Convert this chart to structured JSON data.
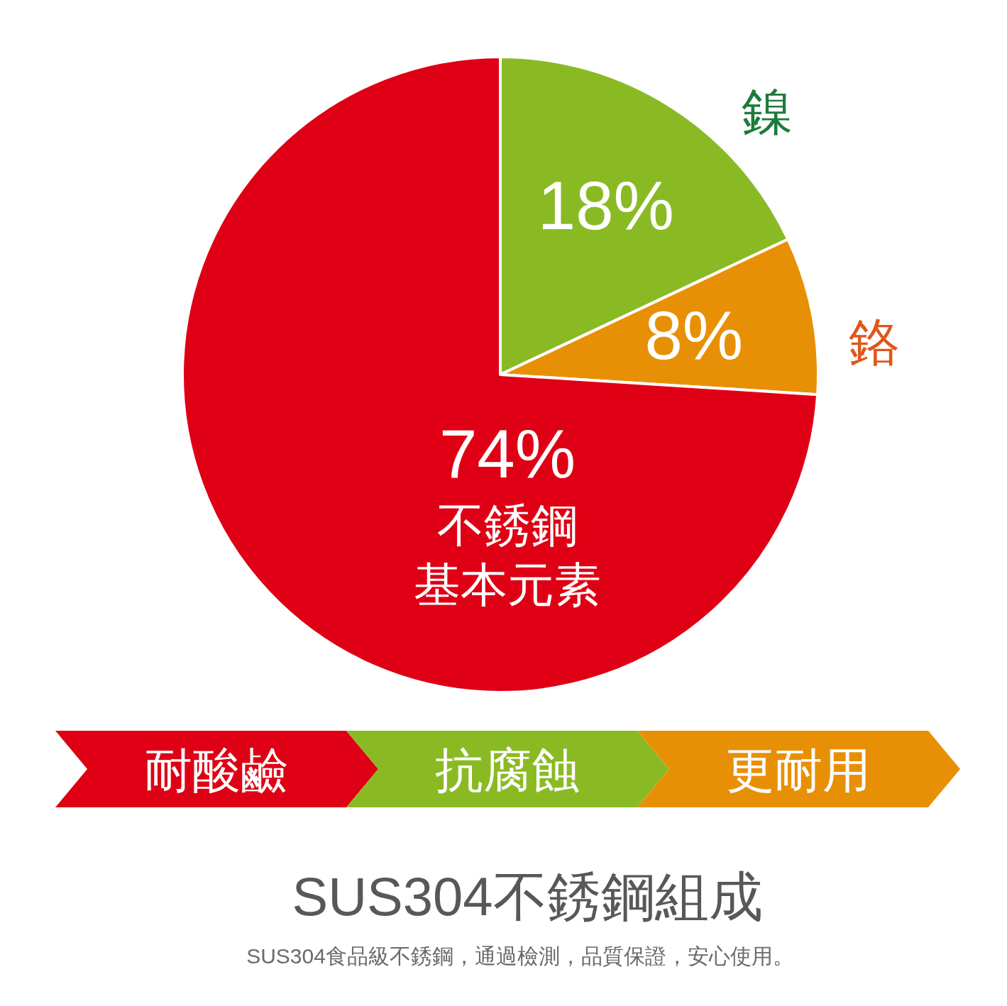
{
  "chart_data": {
    "type": "pie",
    "title": "SUS304不銹鋼組成",
    "subtitle": "SUS304食品級不銹鋼，通過檢測，品質保證，安心使用。",
    "categories": [
      "鎳",
      "鉻",
      "不銹鋼基本元素"
    ],
    "values": [
      18,
      8,
      74
    ],
    "colors": [
      "#8aba23",
      "#e89005",
      "#df0015"
    ],
    "value_labels": [
      "18%",
      "8%",
      "74%"
    ],
    "annotations": [
      "耐酸鹼",
      "抗腐蝕",
      "更耐用"
    ]
  }
}
